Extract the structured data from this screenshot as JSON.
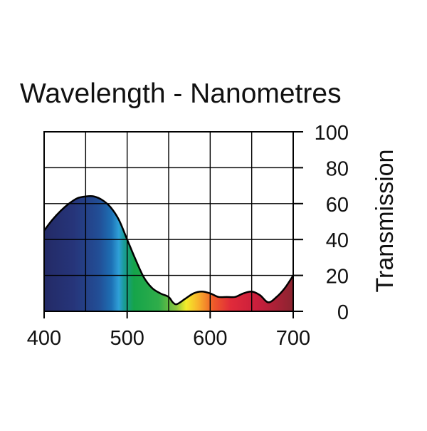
{
  "chart_data": {
    "type": "area",
    "title": "Wavelength - Nanometres",
    "xlabel": "",
    "ylabel": "Transmission",
    "xlim": [
      400,
      700
    ],
    "ylim": [
      0,
      100
    ],
    "x_ticks": [
      400,
      500,
      600,
      700
    ],
    "y_ticks": [
      0,
      20,
      40,
      60,
      80,
      100
    ],
    "grid": true,
    "y_axis_side": "right",
    "fill": "visible spectrum gradient",
    "series": [
      {
        "x": [
          400,
          410,
          420,
          430,
          440,
          450,
          460,
          470,
          480,
          490,
          500,
          510,
          520,
          530,
          540,
          550,
          555,
          560,
          570,
          580,
          590,
          600,
          610,
          620,
          630,
          640,
          650,
          660,
          670,
          680,
          690,
          700
        ],
        "y": [
          45,
          51,
          56,
          60,
          63,
          64,
          64,
          62,
          58,
          51,
          40,
          29,
          19,
          13,
          10,
          8,
          5,
          4,
          7,
          10,
          11,
          10,
          8,
          8,
          8,
          10,
          11,
          9,
          5,
          8,
          13,
          20
        ]
      }
    ]
  }
}
